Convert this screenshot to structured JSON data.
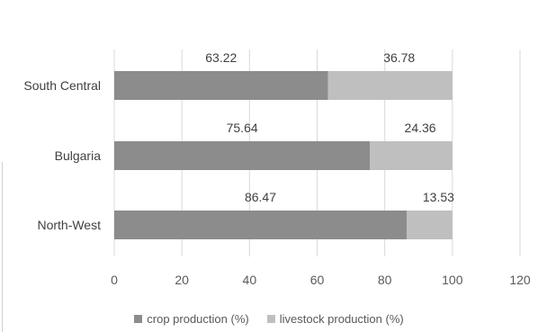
{
  "chart_data": {
    "type": "bar",
    "orientation": "horizontal",
    "stacked": true,
    "categories": [
      "South Central",
      "Bulgaria",
      "North-West"
    ],
    "series": [
      {
        "name": "crop production (%)",
        "values": [
          63.22,
          75.64,
          86.47
        ],
        "color": "#8c8c8c"
      },
      {
        "name": "livestock production (%)",
        "values": [
          36.78,
          24.36,
          13.53
        ],
        "color": "#bfbfbf"
      }
    ],
    "xlim": [
      0,
      120
    ],
    "xticks": [
      0,
      20,
      40,
      60,
      80,
      100,
      120
    ],
    "title": "",
    "xlabel": "",
    "ylabel": "",
    "grid": "vertical",
    "legend": "bottom"
  }
}
